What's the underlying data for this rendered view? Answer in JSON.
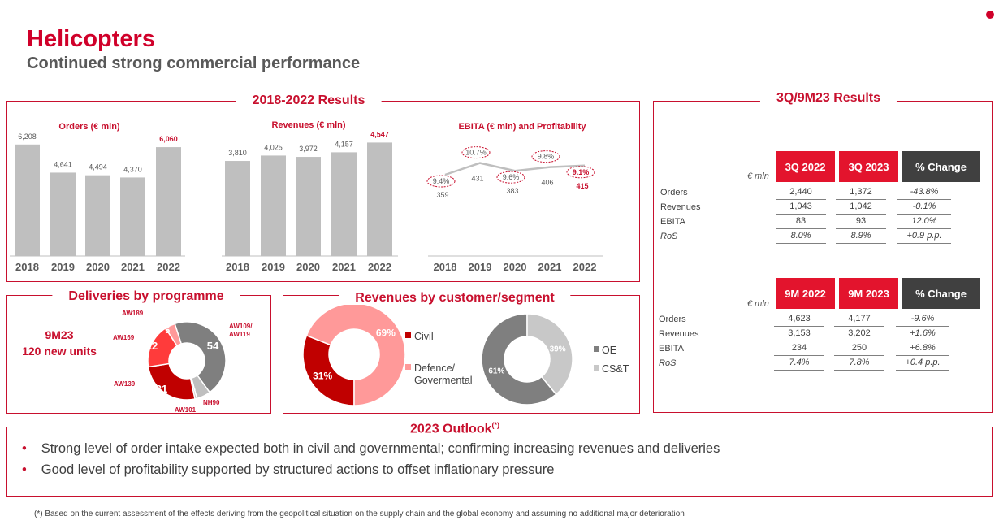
{
  "header": {
    "title": "Helicopters",
    "subtitle": "Continued strong commercial  performance"
  },
  "results_panel": {
    "title": "2018-2022 Results"
  },
  "orders_chart": {
    "title": "Orders (€ mln)",
    "categories": [
      "2018",
      "2019",
      "2020",
      "2021",
      "2022"
    ],
    "labels": [
      "6,208",
      "4,641",
      "4,494",
      "4,370",
      "6,060"
    ]
  },
  "revenues_chart": {
    "title": "Revenues (€ mln)",
    "categories": [
      "2018",
      "2019",
      "2020",
      "2021",
      "2022"
    ],
    "labels": [
      "3,810",
      "4,025",
      "3,972",
      "4,157",
      "4,547"
    ]
  },
  "ebita_chart": {
    "title": "EBITA  (€ mln) and Profitability",
    "categories": [
      "2018",
      "2019",
      "2020",
      "2021",
      "2022"
    ],
    "labels": [
      "359",
      "431",
      "383",
      "406",
      "415"
    ],
    "ros_labels": [
      "9.4%",
      "10.7%",
      "9.6%",
      "9.8%",
      "9.1%"
    ]
  },
  "chart_data": [
    {
      "type": "bar",
      "title": "Orders (€ mln)",
      "categories": [
        "2018",
        "2019",
        "2020",
        "2021",
        "2022"
      ],
      "values": [
        6208,
        4641,
        4494,
        4370,
        6060
      ],
      "highlight_index": 4,
      "bar_color": "#bfbfbf",
      "highlight_color": "#c8102e"
    },
    {
      "type": "bar",
      "title": "Revenues (€ mln)",
      "categories": [
        "2018",
        "2019",
        "2020",
        "2021",
        "2022"
      ],
      "values": [
        3810,
        4025,
        3972,
        4157,
        4547
      ],
      "highlight_index": 4,
      "bar_color": "#bfbfbf",
      "highlight_color": "#c8102e"
    },
    {
      "type": "line",
      "title": "EBITA  (€ mln) and Profitability",
      "categories": [
        "2018",
        "2019",
        "2020",
        "2021",
        "2022"
      ],
      "values": [
        359,
        431,
        383,
        406,
        415
      ],
      "ros": [
        9.4,
        10.7,
        9.6,
        9.8,
        9.1
      ],
      "line_color": "#bfbfbf"
    },
    {
      "type": "pie",
      "title": "Deliveries by programme",
      "slices": [
        {
          "name": "AW109/ AW119",
          "value": 54,
          "color": "#7f7f7f"
        },
        {
          "name": "NH90",
          "value": 7,
          "color": "#bfbfbf"
        },
        {
          "name": "AW101",
          "value": 1,
          "color": "#bfbfbf"
        },
        {
          "name": "AW139",
          "value": 31,
          "color": "#c00000"
        },
        {
          "name": "AW169",
          "value": 22,
          "color": "#ff3b3b"
        },
        {
          "name": "AW189",
          "value": 5,
          "color": "#ff9999"
        }
      ]
    },
    {
      "type": "pie",
      "title": "Revenues by customer/segment",
      "slices": [
        {
          "name": "Civil",
          "value": 31,
          "color": "#c00000"
        },
        {
          "name": "Defence/ Govermental",
          "value": 69,
          "color": "#ff9999"
        }
      ]
    },
    {
      "type": "pie",
      "title": "Revenues by customer/segment",
      "slices": [
        {
          "name": "OE",
          "value": 61,
          "color": "#7f7f7f"
        },
        {
          "name": "CS&T",
          "value": 39,
          "color": "#c8c8c8"
        }
      ]
    }
  ],
  "deliveries": {
    "title": "Deliveries by programme",
    "period": "9M23",
    "units": "120 new units",
    "slices": [
      {
        "name": "AW109/\nAW119",
        "value_label": "54"
      },
      {
        "name": "NH90",
        "value_label": "7"
      },
      {
        "name": "AW101",
        "value_label": "1"
      },
      {
        "name": "AW139",
        "value_label": "31"
      },
      {
        "name": "AW169",
        "value_label": "22"
      },
      {
        "name": "AW189",
        "value_label": "5"
      }
    ]
  },
  "segments": {
    "title": "Revenues by customer/segment",
    "donut1": {
      "labels": [
        "31%",
        "69%"
      ],
      "legend": [
        "Civil",
        "Defence/",
        "Govermental"
      ]
    },
    "donut2": {
      "labels": [
        "61%",
        "39%"
      ],
      "legend": [
        "OE",
        "CS&T"
      ]
    }
  },
  "quarter": {
    "title": "3Q/9M23 Results",
    "unit": "€ mln",
    "headers": [
      "3Q 2022",
      "3Q 2023",
      "% Change"
    ],
    "rows": [
      {
        "label": "Orders",
        "a": "2,440",
        "b": "1,372",
        "c": "-43.8%"
      },
      {
        "label": "Revenues",
        "a": "1,043",
        "b": "1,042",
        "c": "-0.1%"
      },
      {
        "label": "EBITA",
        "a": "83",
        "b": "93",
        "c": "12.0%"
      },
      {
        "label": "RoS",
        "a": "8.0%",
        "b": "8.9%",
        "c": "+0.9 p.p."
      }
    ],
    "headers2": [
      "9M 2022",
      "9M 2023",
      "% Change"
    ],
    "rows2": [
      {
        "label": "Orders",
        "a": "4,623",
        "b": "4,177",
        "c": "-9.6%"
      },
      {
        "label": "Revenues",
        "a": "3,153",
        "b": "3,202",
        "c": "+1.6%"
      },
      {
        "label": "EBITA",
        "a": "234",
        "b": "250",
        "c": "+6.8%"
      },
      {
        "label": "RoS",
        "a": "7.4%",
        "b": "7.8%",
        "c": "+0.4 p.p."
      }
    ],
    "colors": {
      "hdr_red": "#e3142d",
      "hdr_grey": "#404040"
    }
  },
  "outlook": {
    "title": "2023 Outlook",
    "sup": "(*)",
    "bullets": [
      "Strong level of order intake expected both in civil and governmental; confirming increasing revenues and deliveries",
      "Good level of profitability supported by structured actions to offset inflationary pressure"
    ]
  },
  "footnote": "(*) Based on the current assessment of the effects deriving from the geopolitical situation on the supply chain and the global economy and assuming no additional major deterioration"
}
